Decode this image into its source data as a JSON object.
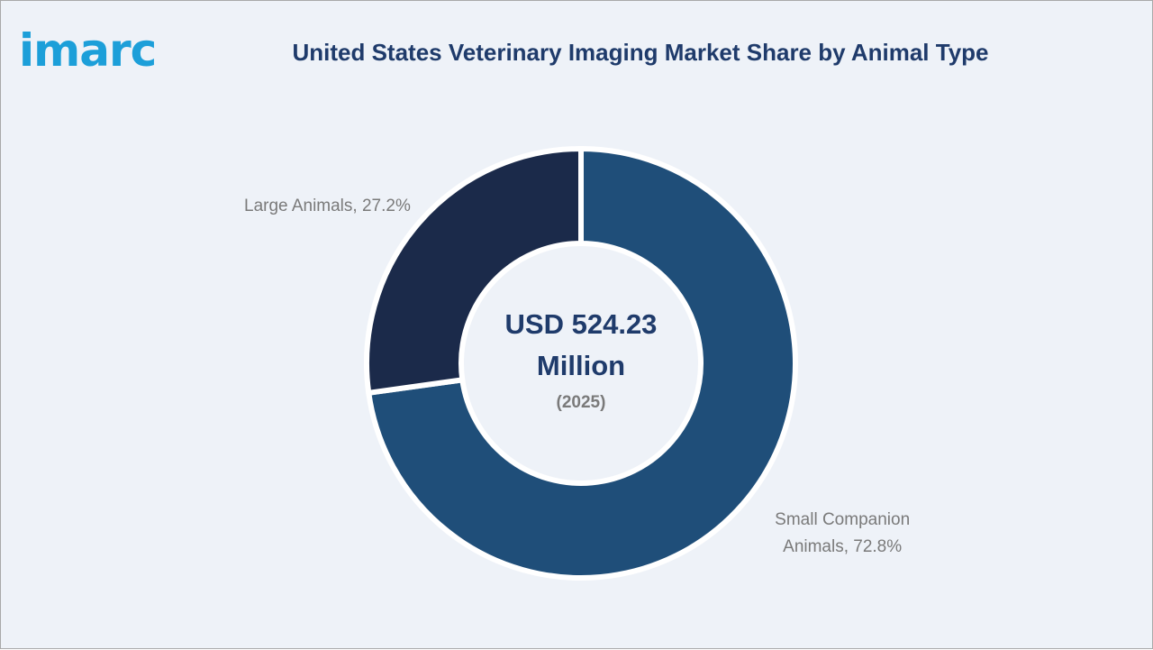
{
  "logo": "imarc",
  "chart_data": {
    "type": "donut",
    "title": "United States Veterinary Imaging Market Share by Animal Type",
    "center_label": "USD 524.23 Million",
    "center_sublabel": "(2025)",
    "values": [
      72.8,
      27.2
    ],
    "value_labels": [
      "Small Companion Animals, 72.8%",
      "Large Animals, 27.2%"
    ],
    "colors": [
      "#1f4e79",
      "#1b2a4a"
    ]
  }
}
